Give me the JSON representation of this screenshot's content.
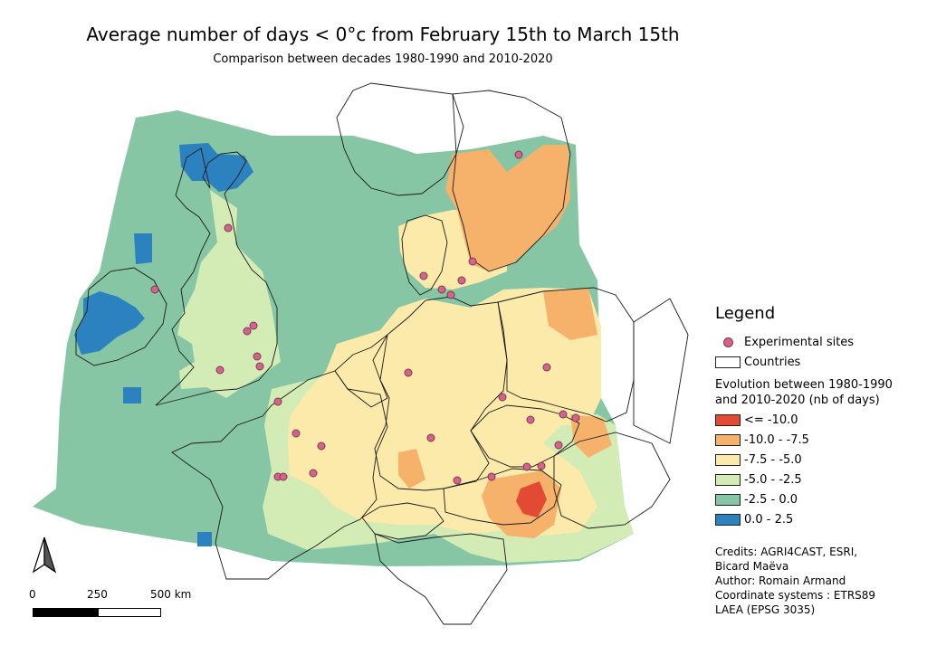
{
  "title": "Average number of days < 0°c from February 15th to March 15th",
  "subtitle": "Comparison between decades 1980-1990 and 2010-2020",
  "legend": {
    "heading": "Legend",
    "sites_label": "Experimental sites",
    "countries_label": "Countries",
    "evolution_title_line1": "Evolution between 1980-1990",
    "evolution_title_line2": "and 2010-2020 (nb of days)",
    "classes": [
      {
        "label": "<= -10.0",
        "color": "#e34a33"
      },
      {
        "label": "-10.0 - -7.5",
        "color": "#f6b26b"
      },
      {
        "label": "-7.5 - -5.0",
        "color": "#fbeaaa"
      },
      {
        "label": "-5.0 - -2.5",
        "color": "#d3ebb4"
      },
      {
        "label": "-2.5 - 0.0",
        "color": "#86c6a4"
      },
      {
        "label": "0.0 - 2.5",
        "color": "#2b82bf"
      }
    ],
    "site_color": "#d6638c"
  },
  "credits": {
    "line1": "Credits: AGRI4CAST, ESRI,",
    "line2": "Bicard Maëva",
    "line3": "Author: Romain Armand",
    "line4": "Coordinate systems : ETRS89",
    "line5": "LAEA (EPSG 3035)"
  },
  "scale": {
    "label_0": "0",
    "label_250": "250",
    "label_500": "500 km"
  }
}
